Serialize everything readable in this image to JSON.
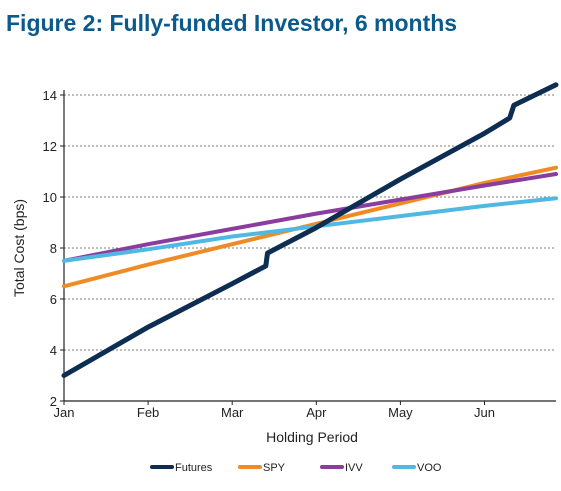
{
  "figure_title": "Figure 2: Fully-funded Investor, 6 months",
  "chart_data": {
    "type": "line",
    "xlabel": "Holding Period",
    "ylabel": "Total Cost (bps)",
    "x_ticks": [
      "Jan",
      "Feb",
      "Mar",
      "Apr",
      "May",
      "Jun"
    ],
    "x_range": [
      0,
      5.85
    ],
    "ylim": [
      2,
      14
    ],
    "y_ticks": [
      2,
      4,
      6,
      8,
      10,
      12,
      14
    ],
    "grid": "horizontal dashed",
    "legend_position": "bottom",
    "series": [
      {
        "name": "Futures",
        "color": "#0d2d52",
        "x": [
          0,
          1,
          2,
          2.4,
          2.42,
          3,
          4,
          5,
          5.3,
          5.35,
          5.85
        ],
        "y": [
          3.0,
          4.9,
          6.6,
          7.3,
          7.8,
          8.8,
          10.7,
          12.5,
          13.1,
          13.6,
          14.4
        ]
      },
      {
        "name": "SPY",
        "color": "#f08a24",
        "x": [
          0,
          1,
          2,
          3,
          4,
          5,
          5.85
        ],
        "y": [
          6.5,
          7.35,
          8.15,
          8.95,
          9.75,
          10.55,
          11.15
        ]
      },
      {
        "name": "IVV",
        "color": "#8a3d9e",
        "x": [
          0,
          1,
          2,
          3,
          4,
          5,
          5.85
        ],
        "y": [
          7.5,
          8.15,
          8.75,
          9.35,
          9.9,
          10.45,
          10.9
        ]
      },
      {
        "name": "VOO",
        "color": "#4fb8e3",
        "x": [
          0,
          1,
          2,
          3,
          4,
          5,
          5.85
        ],
        "y": [
          7.5,
          7.95,
          8.45,
          8.85,
          9.25,
          9.65,
          9.95
        ]
      }
    ]
  }
}
